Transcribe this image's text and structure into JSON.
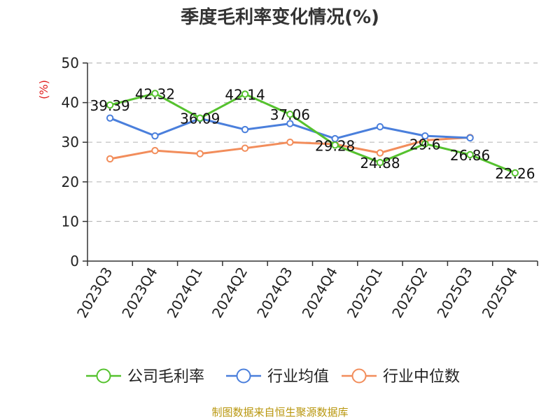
{
  "title": "季度毛利率变化情况(%)",
  "source": "制图数据来自恒生聚源数据库",
  "colors": {
    "company": "#55c22e",
    "industry_avg": "#4a7fdc",
    "industry_median": "#f28d5b",
    "unit": "#e02020",
    "grid": "#bbbbbb",
    "axis": "#333333"
  },
  "chart_data": {
    "type": "line",
    "categories": [
      "2023Q3",
      "2023Q4",
      "2024Q1",
      "2024Q2",
      "2024Q3",
      "2024Q4",
      "2025Q1",
      "2025Q2",
      "2025Q3",
      "2025Q4"
    ],
    "ylabel": "(%)",
    "ylim": [
      0,
      50
    ],
    "yticks": [
      0,
      10,
      20,
      30,
      40,
      50
    ],
    "grid": true,
    "legend_position": "bottom",
    "series": [
      {
        "name": "公司毛利率",
        "color": "#55c22e",
        "values": [
          39.39,
          42.32,
          36.09,
          42.14,
          37.06,
          29.28,
          24.88,
          29.6,
          26.86,
          22.26
        ],
        "labels": [
          "39.39",
          "42.32",
          "36.09",
          "42.14",
          "37.06",
          "29.28",
          "24.88",
          "29.6",
          "26.86",
          "22.26"
        ]
      },
      {
        "name": "行业均值",
        "color": "#4a7fdc",
        "values": [
          36.1,
          31.6,
          36.0,
          33.2,
          34.7,
          30.9,
          33.9,
          31.6,
          31.1,
          null
        ]
      },
      {
        "name": "行业中位数",
        "color": "#f28d5b",
        "values": [
          25.8,
          27.9,
          27.1,
          28.5,
          30.0,
          29.5,
          27.3,
          30.5,
          31.2,
          null
        ]
      }
    ]
  }
}
